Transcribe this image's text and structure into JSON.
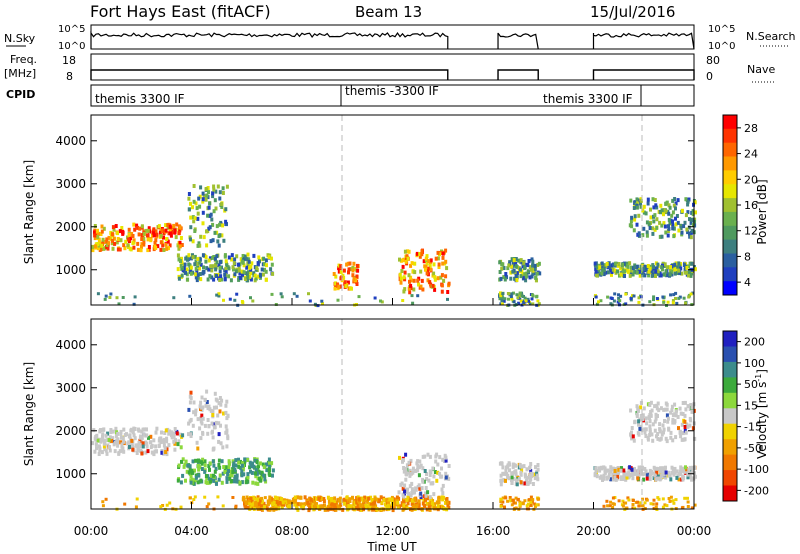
{
  "header": {
    "station": "Fort Hays East (fitACF)",
    "beam": "Beam 13",
    "date": "15/Jul/2016"
  },
  "labels": {
    "nsky": "N.Sky",
    "nsky_hi": "10^5",
    "nsky_lo": "10^0",
    "nsearch": "N.Search",
    "freq_top": "Freq.",
    "freq_unit": "[MHz]",
    "freq_hi": "18",
    "freq_lo": "8",
    "nave_hi": "80",
    "nave_lo": "0",
    "nave": "Nave",
    "cpid": "CPID",
    "cpid_1": "themis 3300 IF",
    "cpid_2": "themis -3300 IF",
    "cpid_3": "themis 3300 IF",
    "ylabel": "Slant Range [km]",
    "xlabel": "Time UT"
  },
  "colors": {
    "power": [
      "#0000ff",
      "#1f3fbf",
      "#2a5fa0",
      "#3d7f7f",
      "#4f9a5f",
      "#6ab04f",
      "#a0c030",
      "#e6e600",
      "#ffcc00",
      "#ff9900",
      "#ff6600",
      "#ff3300",
      "#ff0000"
    ],
    "velocity": [
      "#2020c0",
      "#2a50b0",
      "#3c8c8c",
      "#3caa3c",
      "#8cd83c",
      "#c8c8c8",
      "#f0d200",
      "#f0a000",
      "#f07800",
      "#f04600",
      "#e60000"
    ]
  },
  "chart_data": [
    {
      "type": "heatmap",
      "title": "",
      "xlabel": "Time UT",
      "ylabel": "Slant Range [km]",
      "x_range_hours": [
        0,
        24
      ],
      "x_ticks": [
        "00:00",
        "04:00",
        "08:00",
        "12:00",
        "16:00",
        "20:00",
        "00:00"
      ],
      "y_range_km": [
        180,
        4600
      ],
      "y_ticks": [
        1000,
        2000,
        3000,
        4000
      ],
      "colorbar": {
        "label": "Power [dB]",
        "ticks": [
          4,
          8,
          12,
          16,
          20,
          24,
          28
        ],
        "range": [
          0,
          30
        ]
      },
      "echo_regions": [
        {
          "t": [
            0.0,
            3.6
          ],
          "r": [
            1500,
            2100
          ],
          "level": "high"
        },
        {
          "t": [
            3.4,
            7.2
          ],
          "r": [
            800,
            1400
          ],
          "level": "medium"
        },
        {
          "t": [
            3.8,
            5.4
          ],
          "r": [
            1600,
            3000
          ],
          "level": "medium"
        },
        {
          "t": [
            9.6,
            10.6
          ],
          "r": [
            600,
            1200
          ],
          "level": "high"
        },
        {
          "t": [
            12.2,
            14.2
          ],
          "r": [
            500,
            1500
          ],
          "level": "high"
        },
        {
          "t": [
            16.2,
            17.8
          ],
          "r": [
            800,
            1300
          ],
          "level": "medium"
        },
        {
          "t": [
            20.0,
            24.0
          ],
          "r": [
            900,
            1200
          ],
          "level": "medium"
        },
        {
          "t": [
            21.4,
            24.0
          ],
          "r": [
            1800,
            2700
          ],
          "level": "medium"
        }
      ]
    },
    {
      "type": "heatmap",
      "title": "",
      "xlabel": "Time UT",
      "ylabel": "Slant Range [km]",
      "x_range_hours": [
        0,
        24
      ],
      "x_ticks": [
        "00:00",
        "04:00",
        "08:00",
        "12:00",
        "16:00",
        "20:00",
        "00:00"
      ],
      "y_range_km": [
        180,
        4600
      ],
      "y_ticks": [
        1000,
        2000,
        3000,
        4000
      ],
      "colorbar": {
        "label": "Velocity [m s^-1]",
        "ticks": [
          "200",
          "100",
          "50",
          "15",
          "-15",
          "-50",
          "-100",
          "-200"
        ],
        "range": [
          -250,
          250
        ]
      },
      "echo_regions": [
        {
          "t": [
            0.0,
            3.6
          ],
          "r": [
            1500,
            2100
          ],
          "level": "ground-scatter"
        },
        {
          "t": [
            3.4,
            7.2
          ],
          "r": [
            800,
            1400
          ],
          "level": "positive"
        },
        {
          "t": [
            3.8,
            5.4
          ],
          "r": [
            1600,
            3000
          ],
          "level": "ground-scatter"
        },
        {
          "t": [
            6.0,
            14.2
          ],
          "r": [
            200,
            500
          ],
          "level": "negative"
        },
        {
          "t": [
            12.2,
            14.2
          ],
          "r": [
            500,
            1500
          ],
          "level": "ground-scatter"
        },
        {
          "t": [
            16.2,
            17.8
          ],
          "r": [
            800,
            1300
          ],
          "level": "ground-scatter"
        },
        {
          "t": [
            20.0,
            24.0
          ],
          "r": [
            900,
            1200
          ],
          "level": "ground-scatter"
        },
        {
          "t": [
            21.4,
            24.0
          ],
          "r": [
            1800,
            2700
          ],
          "level": "ground-scatter"
        }
      ]
    }
  ]
}
